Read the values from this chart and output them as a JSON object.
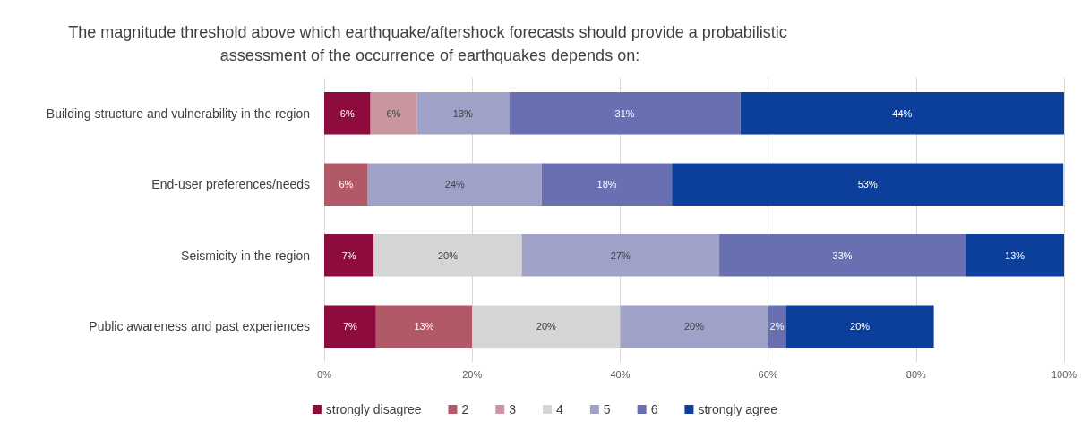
{
  "chart_data": {
    "type": "bar",
    "orientation": "horizontal",
    "stacked": true,
    "title": "The magnitude threshold above which earthquake/aftershock forecasts should provide a probabilistic assessment of the occurrence of earthquakes depends on:",
    "categories": [
      "Building structure and vulnerability in the region",
      "End-user preferences/needs",
      "Seismicity in the region",
      "Public awareness and past experiences"
    ],
    "series": [
      {
        "name": "strongly disagree",
        "color": "#8e0b3e",
        "values": [
          6.25,
          null,
          6.7,
          7
        ],
        "value_labels": [
          "6%",
          null,
          "7%",
          "7%"
        ]
      },
      {
        "name": "2",
        "color": "#b25967",
        "values": [
          null,
          5.9,
          null,
          13
        ],
        "value_labels": [
          null,
          "6%",
          null,
          "13%"
        ]
      },
      {
        "name": "3",
        "color": "#c9959f",
        "values": [
          6.25,
          null,
          null,
          null
        ],
        "value_labels": [
          "6%",
          null,
          null,
          null
        ]
      },
      {
        "name": "4",
        "color": "#d5d5d5",
        "values": [
          null,
          null,
          20,
          20
        ],
        "value_labels": [
          null,
          null,
          "20%",
          "20%"
        ]
      },
      {
        "name": "5",
        "color": "#a0a1c6",
        "values": [
          12.5,
          23.5,
          26.7,
          20
        ],
        "value_labels": [
          "13%",
          "24%",
          "27%",
          "20%"
        ]
      },
      {
        "name": "6",
        "color": "#6870b2",
        "values": [
          31.25,
          17.6,
          33.3,
          2.4
        ],
        "value_labels": [
          "31%",
          "18%",
          "33%",
          "2%"
        ]
      },
      {
        "name": "strongly agree",
        "color": "#0b3f9b",
        "values": [
          43.75,
          52.9,
          13.3,
          20
        ],
        "value_labels": [
          "44%",
          "53%",
          "13%",
          "20%"
        ]
      }
    ],
    "xlim": [
      0,
      100
    ],
    "xticks": [
      {
        "value": 0,
        "label": "0%"
      },
      {
        "value": 20,
        "label": "20%"
      },
      {
        "value": 40,
        "label": "40%"
      },
      {
        "value": 60,
        "label": "60%"
      },
      {
        "value": 80,
        "label": "80%"
      },
      {
        "value": 100,
        "label": "100%"
      }
    ],
    "grid": "x",
    "legend": "bottom"
  }
}
